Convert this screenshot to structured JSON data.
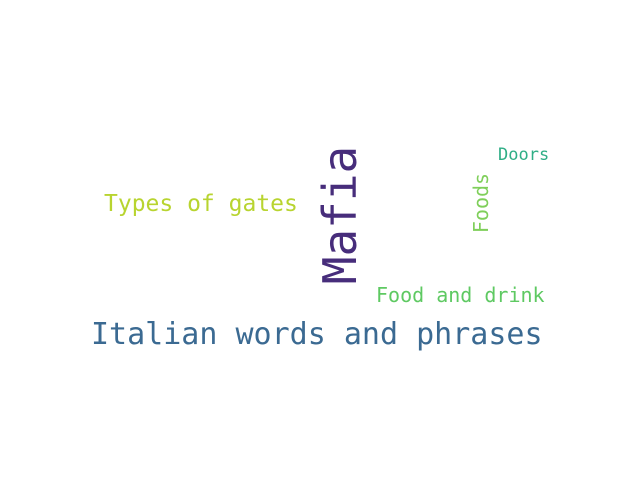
{
  "words": [
    {
      "text": "Mafia",
      "color": "#472d7b"
    },
    {
      "text": "Italian words and phrases",
      "color": "#3b6a92"
    },
    {
      "text": "Types of gates",
      "color": "#b8d430"
    },
    {
      "text": "Foods",
      "color": "#7fcf5a"
    },
    {
      "text": "Food and drink",
      "color": "#5ec962"
    },
    {
      "text": "Doors",
      "color": "#2fae86"
    }
  ]
}
